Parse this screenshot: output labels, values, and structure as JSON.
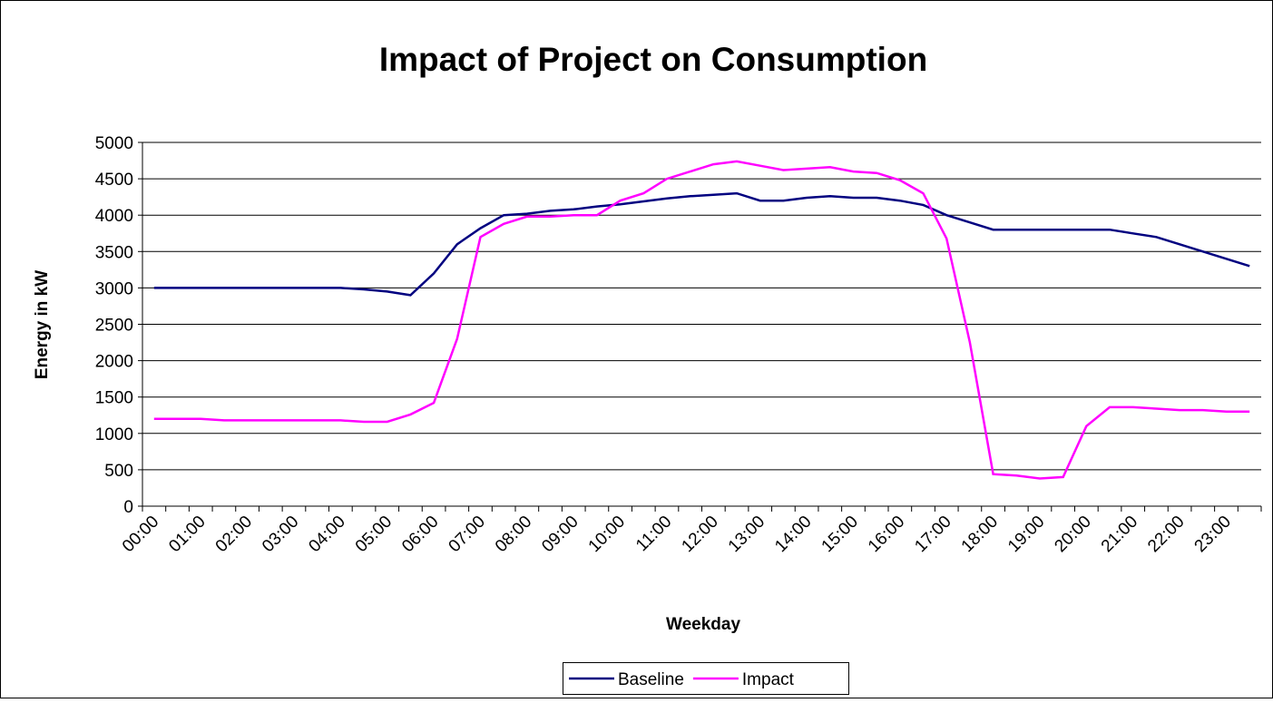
{
  "chart_data": {
    "type": "line",
    "title": "Impact of Project on Consumption",
    "x_label": "Weekday",
    "y_label": "Energy in kW",
    "categories": [
      "00:00",
      null,
      "01:00",
      null,
      "02:00",
      null,
      "03:00",
      null,
      "04:00",
      null,
      "05:00",
      null,
      "06:00",
      null,
      "07:00",
      null,
      "08:00",
      null,
      "09:00",
      null,
      "10:00",
      null,
      "11:00",
      null,
      "12:00",
      null,
      "13:00",
      null,
      "14:00",
      null,
      "15:00",
      null,
      "16:00",
      null,
      "17:00",
      null,
      "18:00",
      null,
      "19:00",
      null,
      "20:00",
      null,
      "21:00",
      null,
      "22:00",
      null,
      "23:00",
      null
    ],
    "series": [
      {
        "name": "Baseline",
        "color": "#000080",
        "values": [
          3000,
          3000,
          3000,
          3000,
          3000,
          3000,
          3000,
          3000,
          3000,
          2980,
          2950,
          2900,
          3200,
          3600,
          3820,
          4000,
          4020,
          4060,
          4080,
          4120,
          4150,
          4190,
          4230,
          4260,
          4280,
          4300,
          4200,
          4200,
          4240,
          4260,
          4240,
          4240,
          4200,
          4140,
          4000,
          3900,
          3800,
          3800,
          3800,
          3800,
          3800,
          3800,
          3750,
          3700,
          3600,
          3500,
          3400,
          3300
        ]
      },
      {
        "name": "Impact",
        "color": "#ff00ff",
        "values": [
          1200,
          1200,
          1200,
          1180,
          1180,
          1180,
          1180,
          1180,
          1180,
          1160,
          1160,
          1260,
          1420,
          2300,
          3700,
          3880,
          3980,
          3980,
          4000,
          4000,
          4200,
          4300,
          4500,
          4600,
          4700,
          4740,
          4680,
          4620,
          4640,
          4660,
          4600,
          4580,
          4480,
          4300,
          3680,
          2250,
          440,
          420,
          380,
          400,
          1100,
          1360,
          1360,
          1340,
          1320,
          1320,
          1300,
          1300
        ]
      }
    ],
    "ylim": [
      0,
      5000
    ],
    "yticks": [
      0,
      500,
      1000,
      1500,
      2000,
      2500,
      3000,
      3500,
      4000,
      4500,
      5000
    ],
    "grid": true,
    "legend": "bottom"
  }
}
